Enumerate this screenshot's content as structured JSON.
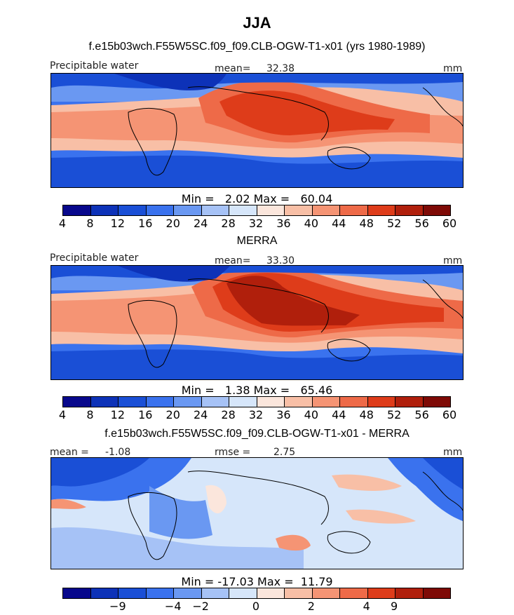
{
  "title": "JJA",
  "panel1": {
    "heading": "f.e15b03wch.F55W5SC.f09_f09.CLB-OGW-T1-x01 (yrs 1980-1989)",
    "variable": "Precipitable water",
    "mean_label": "mean=",
    "mean_value": "32.38",
    "units": "mm",
    "min_label": "Min =",
    "min_value": "2.02",
    "max_label": "Max =",
    "max_value": "60.04"
  },
  "panel2": {
    "heading": "MERRA",
    "variable": "Precipitable water",
    "mean_label": "mean=",
    "mean_value": "33.30",
    "units": "mm",
    "min_label": "Min =",
    "min_value": "1.38",
    "max_label": "Max =",
    "max_value": "65.46"
  },
  "panel3": {
    "heading": "f.e15b03wch.F55W5SC.f09_f09.CLB-OGW-T1-x01 - MERRA",
    "mean_label": "mean =",
    "mean_value": "-1.08",
    "rmse_label": "rmse =",
    "rmse_value": "2.75",
    "units": "mm",
    "min_label": "Min =",
    "min_value": "-17.03",
    "max_label": "Max =",
    "max_value": "11.79"
  },
  "colorbar_abs": {
    "colors": [
      "#08088c",
      "#0d32b8",
      "#1a4fd6",
      "#3a72ee",
      "#6a98f2",
      "#a6c2f6",
      "#d6e6fa",
      "#fbe6dc",
      "#f8bfa6",
      "#f59474",
      "#ee6a48",
      "#de3c1a",
      "#b01f0c",
      "#7e0a06"
    ],
    "ticks": [
      "4",
      "8",
      "12",
      "16",
      "20",
      "24",
      "28",
      "32",
      "36",
      "40",
      "44",
      "48",
      "52",
      "56",
      "60"
    ]
  },
  "colorbar_diff": {
    "colors": [
      "#08088c",
      "#0d32b8",
      "#1a4fd6",
      "#3a72ee",
      "#6a98f2",
      "#a6c2f6",
      "#d6e6fa",
      "#fbe6dc",
      "#f8bfa6",
      "#f59474",
      "#ee6a48",
      "#de3c1a",
      "#b01f0c",
      "#7e0a06"
    ],
    "ticks": [
      "−9",
      "−4",
      "−2",
      "0",
      "2",
      "4",
      "9"
    ]
  }
}
